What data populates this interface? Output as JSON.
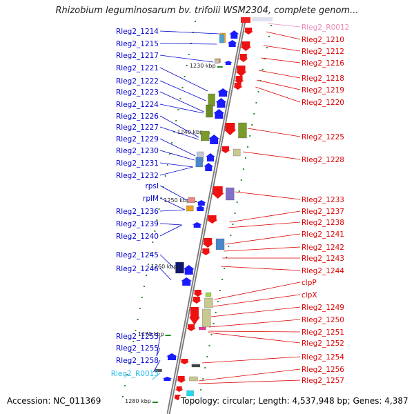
{
  "title": "Rhizobium leguminosarum bv. trifolii WSM2304, complete genom...",
  "accession": "Accession: NC_011369",
  "topology": "Topology: circular; Length: 4,537,948 bp; Genes: 4,387",
  "colors": {
    "left_label": "#0000cc",
    "right_label": "#dd0000",
    "rna_left": "#22bbee",
    "rna_right": "#ee88bb",
    "plus_strand_arrow": "#1a1aff",
    "minus_strand_arrow": "#ee1111",
    "backbone": "#888888",
    "tick": "#228822"
  },
  "kbp_ticks": [
    "1230 kbp",
    "1240 kbp",
    "1250 kbp",
    "1260 kbp",
    "1270 kbp",
    "1280 kbp"
  ],
  "left_labels": [
    {
      "text": "Rleg2_1214"
    },
    {
      "text": "Rleg2_1215"
    },
    {
      "text": "Rleg2_1217"
    },
    {
      "text": "Rleg2_1221"
    },
    {
      "text": "Rleg2_1222"
    },
    {
      "text": "Rleg2_1223"
    },
    {
      "text": "Rleg2_1224"
    },
    {
      "text": "Rleg2_1226"
    },
    {
      "text": "Rleg2_1227"
    },
    {
      "text": "Rleg2_1229"
    },
    {
      "text": "Rleg2_1230"
    },
    {
      "text": "Rleg2_1231"
    },
    {
      "text": "Rleg2_1232"
    },
    {
      "text": "rpsI"
    },
    {
      "text": "rplM"
    },
    {
      "text": "Rleg2_1236"
    },
    {
      "text": "Rleg2_1239"
    },
    {
      "text": "Rleg2_1240"
    },
    {
      "text": "Rleg2_1245"
    },
    {
      "text": "Rleg2_1246"
    },
    {
      "text": "Rleg2_1253"
    },
    {
      "text": "Rleg2_1255"
    },
    {
      "text": "Rleg2_1258"
    },
    {
      "text": "Rleg2_R0013",
      "rna": true
    }
  ],
  "right_labels": [
    {
      "text": "Rleg2_R0012",
      "rna": true
    },
    {
      "text": "Rleg2_1210"
    },
    {
      "text": "Rleg2_1212"
    },
    {
      "text": "Rleg2_1216"
    },
    {
      "text": "Rleg2_1218"
    },
    {
      "text": "Rleg2_1219"
    },
    {
      "text": "Rleg2_1220"
    },
    {
      "text": "Rleg2_1225"
    },
    {
      "text": "Rleg2_1228"
    },
    {
      "text": "Rleg2_1233"
    },
    {
      "text": "Rleg2_1237"
    },
    {
      "text": "Rleg2_1238"
    },
    {
      "text": "Rleg2_1241"
    },
    {
      "text": "Rleg2_1242"
    },
    {
      "text": "Rleg2_1243"
    },
    {
      "text": "Rleg2_1244"
    },
    {
      "text": "clpP"
    },
    {
      "text": "clpX"
    },
    {
      "text": "Rleg2_1249"
    },
    {
      "text": "Rleg2_1250"
    },
    {
      "text": "Rleg2_1251"
    },
    {
      "text": "Rleg2_1252"
    },
    {
      "text": "Rleg2_1254"
    },
    {
      "text": "Rleg2_1256"
    },
    {
      "text": "Rleg2_1257"
    }
  ]
}
